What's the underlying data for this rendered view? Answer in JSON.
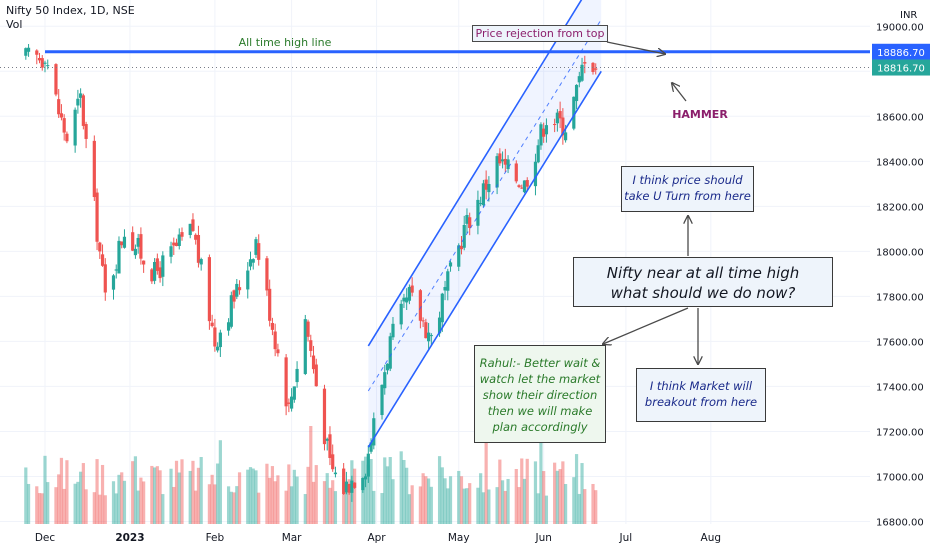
{
  "header": {
    "symbol": "Nifty 50 Index, 1D, NSE",
    "volume_label": "Vol"
  },
  "currency": "INR",
  "colors": {
    "up": "#26a69a",
    "down": "#ef5350",
    "ath_line": "#2962ff",
    "channel": "#2962ff",
    "last_price_bg": "#26a69a",
    "ath_tag_bg": "#2962ff"
  },
  "annotations": {
    "ath_line_label": "All time high line",
    "price_rejection": "Price rejection from top",
    "hammer": "HAMMER",
    "u_turn": "I think price should take U Turn from here",
    "main_question": "Nifty near at all time high what should we do now?",
    "rahul": "Rahul:- Better wait & watch let the market show their direction then we will make plan accordingly",
    "breakout": "I think Market will breakout from here"
  },
  "price_tags": {
    "ath": "18886.70",
    "last": "18816.70"
  },
  "chart_data": {
    "type": "candlestick",
    "title": "Nifty 50 Index, 1D, NSE",
    "ylabel": "INR",
    "ylim": [
      16680,
      19150
    ],
    "y_ticks": [
      16800,
      17000,
      17200,
      17400,
      17600,
      17800,
      18000,
      18200,
      18400,
      18600,
      18800,
      19000
    ],
    "y_tick_labels": [
      "16800.00",
      "17000.00",
      "17200.00",
      "17400.00",
      "17600.00",
      "17800.00",
      "18000.00",
      "18200.00",
      "18400.00",
      "18600.00",
      "18800.00",
      "19000.00"
    ],
    "x_tick_labels": [
      "Dec",
      "2023",
      "Feb",
      "Mar",
      "Apr",
      "May",
      "Jun",
      "Jul",
      "Aug"
    ],
    "ath_level": 18886.7,
    "last_close": 18816.7,
    "channel": {
      "upper": [
        {
          "date": "2023-03-29",
          "price": 17580
        },
        {
          "date": "2023-06-22",
          "price": 19260
        }
      ],
      "middle": [
        {
          "date": "2023-03-29",
          "price": 17380
        },
        {
          "date": "2023-06-22",
          "price": 19030
        }
      ],
      "lower": [
        {
          "date": "2023-03-29",
          "price": 17130
        },
        {
          "date": "2023-06-22",
          "price": 18800
        }
      ]
    },
    "anchors": [
      {
        "date": "2022-12-01",
        "price": 18890
      },
      {
        "date": "2022-12-06",
        "price": 18620
      },
      {
        "date": "2022-12-09",
        "price": 18500
      },
      {
        "date": "2022-12-14",
        "price": 18680
      },
      {
        "date": "2022-12-23",
        "price": 17800
      },
      {
        "date": "2022-12-30",
        "price": 18100
      },
      {
        "date": "2023-01-10",
        "price": 17900
      },
      {
        "date": "2023-01-24",
        "price": 18100
      },
      {
        "date": "2023-02-01",
        "price": 17600
      },
      {
        "date": "2023-02-10",
        "price": 17850
      },
      {
        "date": "2023-02-16",
        "price": 18050
      },
      {
        "date": "2023-02-28",
        "price": 17300
      },
      {
        "date": "2023-03-06",
        "price": 17700
      },
      {
        "date": "2023-03-15",
        "price": 17050
      },
      {
        "date": "2023-03-20",
        "price": 16950
      },
      {
        "date": "2023-03-28",
        "price": 17050
      },
      {
        "date": "2023-04-06",
        "price": 17600
      },
      {
        "date": "2023-04-13",
        "price": 17800
      },
      {
        "date": "2023-04-21",
        "price": 17620
      },
      {
        "date": "2023-05-03",
        "price": 18100
      },
      {
        "date": "2023-05-15",
        "price": 18400
      },
      {
        "date": "2023-05-25",
        "price": 18300
      },
      {
        "date": "2023-06-02",
        "price": 18600
      },
      {
        "date": "2023-06-09",
        "price": 18560
      },
      {
        "date": "2023-06-14",
        "price": 18750
      },
      {
        "date": "2023-06-16",
        "price": 18880
      },
      {
        "date": "2023-06-20",
        "price": 18820
      }
    ]
  }
}
